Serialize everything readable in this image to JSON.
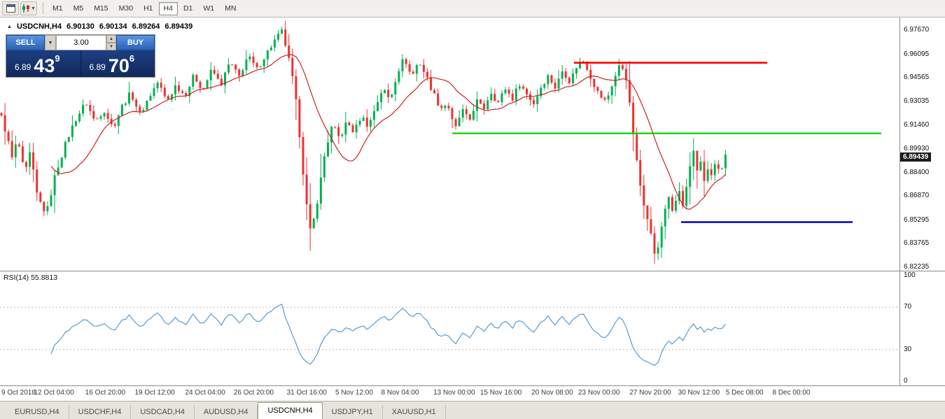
{
  "toolbar": {
    "timeframes": [
      "M1",
      "M5",
      "M15",
      "M30",
      "H1",
      "H4",
      "D1",
      "W1",
      "MN"
    ],
    "active_timeframe": "H4",
    "icons": [
      "chart-window-icon",
      "chart-style-icon"
    ]
  },
  "header": {
    "symbol_period": "USDCNH,H4",
    "open": "6.90130",
    "high": "6.90134",
    "low": "6.89264",
    "close": "6.89439"
  },
  "oneclick": {
    "sell_label": "SELL",
    "buy_label": "BUY",
    "volume": "3.00",
    "bid": {
      "prefix": "6.89",
      "big": "43",
      "sup": "9"
    },
    "ask": {
      "prefix": "6.89",
      "big": "70",
      "sup": "6"
    }
  },
  "rsi_label": "RSI(14) 55.8813",
  "price_tag": "6.89439",
  "tabs": {
    "items": [
      "EURUSD,H4",
      "USDCHF,H4",
      "USDCAD,H4",
      "AUDUSD,H4",
      "USDCNH,H4",
      "USDJPY,H1",
      "XAUUSD,H1"
    ],
    "active_index": 4
  },
  "chart_data": {
    "type": "candlestick",
    "symbol": "USDCNH",
    "timeframe": "H4",
    "ohlc_display": {
      "open": 6.9013,
      "high": 6.90134,
      "low": 6.89264,
      "close": 6.89439
    },
    "price_axis_labels": [
      "6.97670",
      "6.96095",
      "6.94565",
      "6.93035",
      "6.91460",
      "6.89930",
      "6.88400",
      "6.86870",
      "6.85295",
      "6.83765",
      "6.82235"
    ],
    "price_range": {
      "top": 6.985,
      "bottom": 6.82
    },
    "candle_count": 205,
    "candles_end_frac": 0.805,
    "colors": {
      "up": "#00b050",
      "down": "#ef3030"
    },
    "ma": {
      "period": 15,
      "color": "#cc2222"
    },
    "levels": [
      {
        "name": "resistance-line",
        "color": "#ff0000",
        "price": 6.9555,
        "x1": 0.638,
        "x2": 0.853,
        "width": 2.6
      },
      {
        "name": "mid-support-line",
        "color": "#00d400",
        "price": 6.9095,
        "x1": 0.503,
        "x2": 0.98,
        "width": 2.2
      },
      {
        "name": "low-support-line",
        "color": "#0000cc",
        "price": 6.8517,
        "x1": 0.757,
        "x2": 0.948,
        "width": 2.6
      }
    ],
    "rsi": {
      "period": 14,
      "value": 55.8813,
      "color": "#4a93c8",
      "levels": [
        100,
        70,
        30,
        0
      ],
      "guide_levels": [
        70,
        30
      ]
    },
    "price_path": [
      [
        0.0,
        6.92
      ],
      [
        0.006,
        6.908
      ],
      [
        0.012,
        6.893
      ],
      [
        0.018,
        6.906
      ],
      [
        0.026,
        6.882
      ],
      [
        0.032,
        6.897
      ],
      [
        0.04,
        6.868
      ],
      [
        0.05,
        6.857
      ],
      [
        0.06,
        6.883
      ],
      [
        0.072,
        6.904
      ],
      [
        0.082,
        6.918
      ],
      [
        0.094,
        6.93
      ],
      [
        0.104,
        6.917
      ],
      [
        0.114,
        6.925
      ],
      [
        0.124,
        6.913
      ],
      [
        0.134,
        6.927
      ],
      [
        0.144,
        6.936
      ],
      [
        0.154,
        6.922
      ],
      [
        0.164,
        6.933
      ],
      [
        0.174,
        6.943
      ],
      [
        0.184,
        6.93
      ],
      [
        0.194,
        6.941
      ],
      [
        0.204,
        6.934
      ],
      [
        0.214,
        6.947
      ],
      [
        0.224,
        6.938
      ],
      [
        0.234,
        6.951
      ],
      [
        0.244,
        6.941
      ],
      [
        0.254,
        6.956
      ],
      [
        0.264,
        6.946
      ],
      [
        0.274,
        6.96
      ],
      [
        0.284,
        6.951
      ],
      [
        0.294,
        6.961
      ],
      [
        0.304,
        6.97
      ],
      [
        0.312,
        6.976
      ],
      [
        0.318,
        6.962
      ],
      [
        0.326,
        6.938
      ],
      [
        0.332,
        6.906
      ],
      [
        0.338,
        6.868
      ],
      [
        0.344,
        6.843
      ],
      [
        0.352,
        6.868
      ],
      [
        0.36,
        6.898
      ],
      [
        0.368,
        6.915
      ],
      [
        0.376,
        6.906
      ],
      [
        0.384,
        6.917
      ],
      [
        0.392,
        6.91
      ],
      [
        0.4,
        6.921
      ],
      [
        0.408,
        6.914
      ],
      [
        0.416,
        6.927
      ],
      [
        0.424,
        6.939
      ],
      [
        0.432,
        6.931
      ],
      [
        0.44,
        6.949
      ],
      [
        0.448,
        6.959
      ],
      [
        0.456,
        6.946
      ],
      [
        0.464,
        6.957
      ],
      [
        0.472,
        6.947
      ],
      [
        0.48,
        6.936
      ],
      [
        0.488,
        6.926
      ],
      [
        0.496,
        6.929
      ],
      [
        0.504,
        6.911
      ],
      [
        0.512,
        6.925
      ],
      [
        0.52,
        6.917
      ],
      [
        0.528,
        6.931
      ],
      [
        0.536,
        6.925
      ],
      [
        0.544,
        6.937
      ],
      [
        0.552,
        6.929
      ],
      [
        0.56,
        6.939
      ],
      [
        0.568,
        6.932
      ],
      [
        0.576,
        6.942
      ],
      [
        0.584,
        6.935
      ],
      [
        0.592,
        6.929
      ],
      [
        0.6,
        6.94
      ],
      [
        0.608,
        6.947
      ],
      [
        0.616,
        6.939
      ],
      [
        0.624,
        6.951
      ],
      [
        0.632,
        6.943
      ],
      [
        0.64,
        6.954
      ],
      [
        0.648,
        6.957
      ],
      [
        0.656,
        6.945
      ],
      [
        0.664,
        6.935
      ],
      [
        0.672,
        6.93
      ],
      [
        0.68,
        6.943
      ],
      [
        0.688,
        6.955
      ],
      [
        0.694,
        6.948
      ],
      [
        0.7,
        6.921
      ],
      [
        0.706,
        6.892
      ],
      [
        0.712,
        6.869
      ],
      [
        0.718,
        6.856
      ],
      [
        0.724,
        6.838
      ],
      [
        0.728,
        6.826
      ],
      [
        0.733,
        6.846
      ],
      [
        0.738,
        6.861
      ],
      [
        0.742,
        6.869
      ],
      [
        0.746,
        6.857
      ],
      [
        0.75,
        6.866
      ],
      [
        0.754,
        6.872
      ],
      [
        0.758,
        6.861
      ],
      [
        0.762,
        6.875
      ],
      [
        0.766,
        6.888
      ],
      [
        0.77,
        6.898
      ],
      [
        0.774,
        6.883
      ],
      [
        0.778,
        6.893
      ],
      [
        0.782,
        6.877
      ],
      [
        0.786,
        6.887
      ],
      [
        0.79,
        6.881
      ],
      [
        0.794,
        6.891
      ],
      [
        0.798,
        6.884
      ],
      [
        0.802,
        6.889
      ],
      [
        0.805,
        6.894
      ]
    ],
    "time_labels": [
      {
        "t": "9 Oct 2018",
        "x": 0.008
      },
      {
        "t": "12 Oct 04:00",
        "x": 0.058
      },
      {
        "t": "16 Oct 20:00",
        "x": 0.115
      },
      {
        "t": "19 Oct 12:00",
        "x": 0.17
      },
      {
        "t": "24 Oct 04:00",
        "x": 0.226
      },
      {
        "t": "26 Oct 20:00",
        "x": 0.28
      },
      {
        "t": "31 Oct 16:00",
        "x": 0.339
      },
      {
        "t": "5 Nov 12:00",
        "x": 0.393
      },
      {
        "t": "8 Nov 04:00",
        "x": 0.444
      },
      {
        "t": "13 Nov 00:00",
        "x": 0.502
      },
      {
        "t": "15 Nov 16:00",
        "x": 0.554
      },
      {
        "t": "20 Nov 08:00",
        "x": 0.611
      },
      {
        "t": "23 Nov 00:00",
        "x": 0.663
      },
      {
        "t": "27 Nov 20:00",
        "x": 0.72
      },
      {
        "t": "30 Nov 12:00",
        "x": 0.774
      },
      {
        "t": "5 Dec 08:00",
        "x": 0.827
      },
      {
        "t": "8 Dec 00:00",
        "x": 0.879
      }
    ]
  }
}
